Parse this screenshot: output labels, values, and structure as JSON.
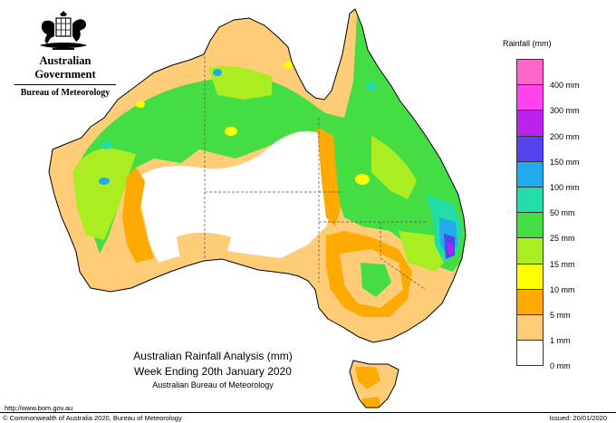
{
  "header": {
    "government": "Australian Government",
    "bureau": "Bureau of Meteorology"
  },
  "legend": {
    "title": "Rainfall (mm)",
    "items": [
      {
        "label": "",
        "color": "#ff66cc"
      },
      {
        "label": "400 mm",
        "color": "#ff44ee"
      },
      {
        "label": "300 mm",
        "color": "#bb22ee"
      },
      {
        "label": "200 mm",
        "color": "#5544ee"
      },
      {
        "label": "150 mm",
        "color": "#22aaee"
      },
      {
        "label": "100 mm",
        "color": "#22ddaa"
      },
      {
        "label": "50 mm",
        "color": "#44dd44"
      },
      {
        "label": "25 mm",
        "color": "#aaee22"
      },
      {
        "label": "15 mm",
        "color": "#ffff00"
      },
      {
        "label": "10 mm",
        "color": "#ffaa00"
      },
      {
        "label": "5 mm",
        "color": "#ffcc77"
      },
      {
        "label": "1 mm",
        "color": "#ffffff"
      },
      {
        "label": "0 mm",
        "color": ""
      }
    ]
  },
  "caption": {
    "line1": "Australian Rainfall Analysis (mm)",
    "line2": "Week Ending 20th January 2020",
    "line3": "Australian Bureau of Meteorology"
  },
  "footer": {
    "url": "http://www.bom.gov.au",
    "copyright": "© Commonwealth of Australia 2020, Bureau of Meteorology",
    "issued": "Issued: 20/01/2020"
  }
}
